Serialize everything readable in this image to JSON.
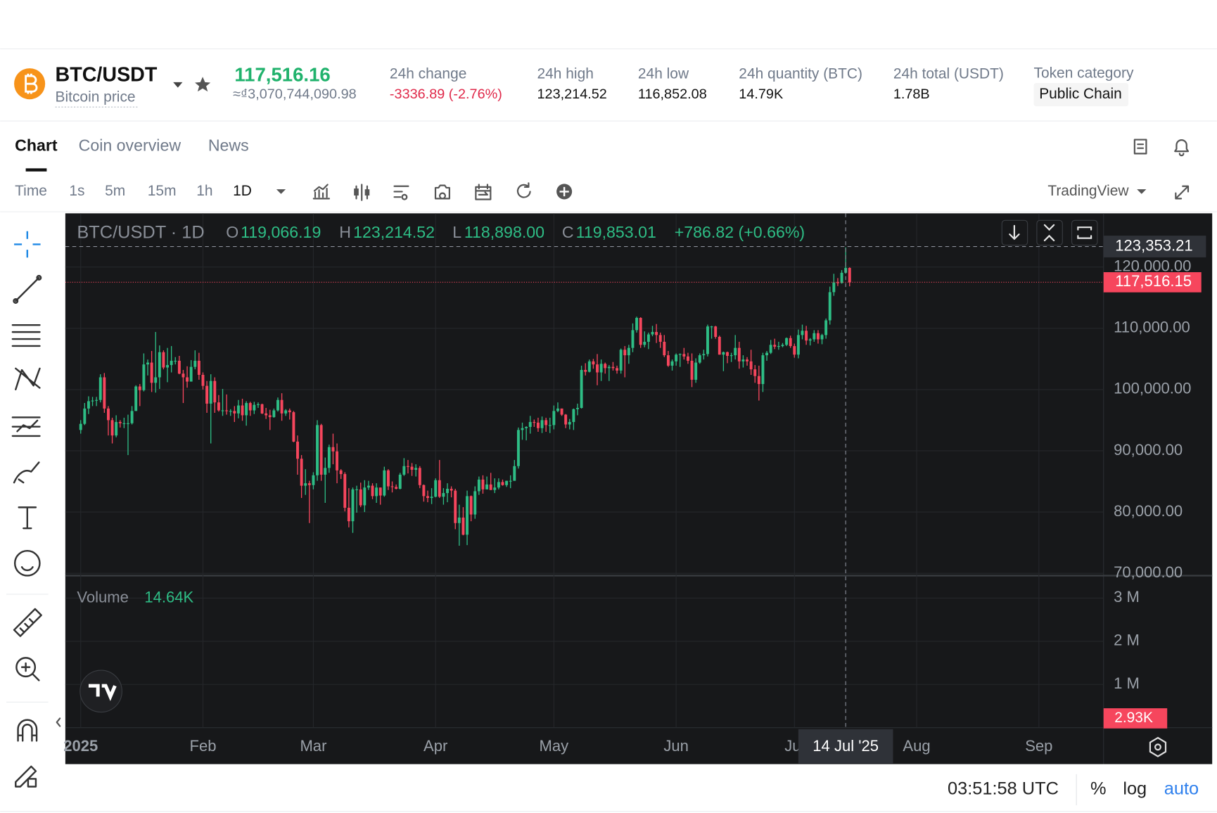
{
  "header": {
    "pair": "BTC/USDT",
    "subtitle": "Bitcoin price",
    "price": "117,516.16",
    "price_alt": "≈₫3,070,744,090.98",
    "stats": [
      {
        "label": "24h change",
        "value": "-3336.89 (-2.76%)"
      },
      {
        "label": "24h high",
        "value": "123,214.52"
      },
      {
        "label": "24h low",
        "value": "116,852.08"
      },
      {
        "label": "24h quantity (BTC)",
        "value": "14.79K"
      },
      {
        "label": "24h total (USDT)",
        "value": "1.78B"
      },
      {
        "label": "Token category",
        "value": "Public Chain"
      }
    ]
  },
  "tabs": [
    "Chart",
    "Coin overview",
    "News"
  ],
  "intervals": [
    "Time",
    "1s",
    "5m",
    "15m",
    "1h",
    "1D"
  ],
  "provider": "TradingView",
  "chart_data": {
    "type": "candlestick",
    "title": "BTC/USDT · 1D",
    "legend": [
      {
        "key": "O",
        "value": "119,066.19"
      },
      {
        "key": "H",
        "value": "123,214.52"
      },
      {
        "key": "L",
        "value": "118,898.00"
      },
      {
        "key": "C",
        "value": "119,853.01"
      }
    ],
    "change": "+786.82 (+0.66%)",
    "up_color": "#2ebd85",
    "down_color": "#f6465d",
    "xlim": [
      -3.9,
      259.4
    ],
    "xticks": [
      {
        "value": 0,
        "label": "2025"
      },
      {
        "value": 31,
        "label": "Feb"
      },
      {
        "value": 59,
        "label": "Mar"
      },
      {
        "value": 90,
        "label": "Apr"
      },
      {
        "value": 120,
        "label": "May"
      },
      {
        "value": 151,
        "label": "Jun"
      },
      {
        "value": 181,
        "label": "Jul"
      },
      {
        "value": 212,
        "label": "Aug"
      },
      {
        "value": 243,
        "label": "Sep"
      }
    ],
    "ylim": [
      69620,
      128770
    ],
    "yticks": [
      {
        "value": 70000,
        "label": "70,000.00"
      },
      {
        "value": 80000,
        "label": "80,000.00"
      },
      {
        "value": 90000,
        "label": "90,000.00"
      },
      {
        "value": 100000,
        "label": "100,000.00"
      },
      {
        "value": 110000,
        "label": "110,000.00"
      },
      {
        "value": 120000,
        "label": "120,000.00"
      }
    ],
    "grid": true,
    "crosshair_x": {
      "value": 194,
      "label": "14 Jul '25"
    },
    "crosshair_price": {
      "value": 123353.21,
      "label": "123,353.21"
    },
    "last_price": {
      "value": 117516.15,
      "label": "117,516.15"
    },
    "volume_label": "Volume",
    "volume_value": "14.64K",
    "volume_last": "2.93K",
    "volume_ylim": [
      0,
      3520000
    ],
    "volume_yticks": [
      {
        "value": 1000000,
        "label": "1 M"
      },
      {
        "value": 2000000,
        "label": "2 M"
      },
      {
        "value": 3000000,
        "label": "3 M"
      }
    ],
    "candles": [
      [
        93400,
        95000,
        92800,
        94400
      ],
      [
        94400,
        97800,
        94200,
        96900
      ],
      [
        96900,
        98900,
        96000,
        98100
      ],
      [
        98100,
        98800,
        97300,
        98200
      ],
      [
        98200,
        98800,
        97300,
        98300
      ],
      [
        98300,
        102500,
        97900,
        102000
      ],
      [
        102000,
        102700,
        96200,
        96900
      ],
      [
        96900,
        97300,
        92500,
        95000
      ],
      [
        95000,
        95400,
        91200,
        92500
      ],
      [
        92500,
        95800,
        92200,
        94700
      ],
      [
        94700,
        95000,
        93800,
        94500
      ],
      [
        94500,
        95400,
        93700,
        94500
      ],
      [
        94500,
        95900,
        89300,
        94500
      ],
      [
        94500,
        97300,
        94300,
        96500
      ],
      [
        96500,
        100700,
        96500,
        100500
      ],
      [
        100500,
        100900,
        97300,
        99900
      ],
      [
        99900,
        105900,
        99700,
        104100
      ],
      [
        104100,
        104900,
        102300,
        104400
      ],
      [
        104400,
        106300,
        99600,
        101100
      ],
      [
        101100,
        109400,
        99500,
        102000
      ],
      [
        102000,
        107200,
        100100,
        106100
      ],
      [
        106100,
        106400,
        103300,
        103600
      ],
      [
        103600,
        106800,
        101200,
        104000
      ],
      [
        104000,
        107100,
        102800,
        104700
      ],
      [
        104700,
        105300,
        104100,
        104700
      ],
      [
        104700,
        105500,
        102500,
        102600
      ],
      [
        102600,
        103200,
        97800,
        102000
      ],
      [
        102000,
        103800,
        100300,
        101300
      ],
      [
        101300,
        104800,
        101300,
        103700
      ],
      [
        103700,
        106400,
        103300,
        104700
      ],
      [
        104700,
        106000,
        101600,
        102400
      ],
      [
        102400,
        102800,
        100000,
        100600
      ],
      [
        100600,
        101400,
        96200,
        97700
      ],
      [
        97700,
        102500,
        91200,
        101400
      ],
      [
        101400,
        102000,
        96200,
        97900
      ],
      [
        97900,
        99100,
        96400,
        96600
      ],
      [
        96600,
        100100,
        95700,
        96600
      ],
      [
        96600,
        99200,
        95900,
        96500
      ],
      [
        96500,
        96800,
        95700,
        96500
      ],
      [
        96500,
        97300,
        94700,
        96100
      ],
      [
        96100,
        98300,
        95300,
        97400
      ],
      [
        97400,
        98500,
        94900,
        95800
      ],
      [
        95800,
        98100,
        94100,
        97800
      ],
      [
        97800,
        98000,
        95700,
        96600
      ],
      [
        96600,
        98000,
        96000,
        97500
      ],
      [
        97500,
        97900,
        97000,
        97600
      ],
      [
        97600,
        97700,
        96000,
        96100
      ],
      [
        96100,
        97000,
        95200,
        95800
      ],
      [
        95800,
        96700,
        93400,
        95500
      ],
      [
        95500,
        96900,
        95400,
        96600
      ],
      [
        96600,
        98700,
        96400,
        98300
      ],
      [
        98300,
        99400,
        94900,
        96100
      ],
      [
        96100,
        96800,
        95700,
        96600
      ],
      [
        96600,
        96900,
        95100,
        96300
      ],
      [
        96300,
        96500,
        91400,
        91500
      ],
      [
        91500,
        92500,
        86100,
        88700
      ],
      [
        88700,
        89300,
        82300,
        84300
      ],
      [
        84300,
        87000,
        82800,
        84700
      ],
      [
        84700,
        85100,
        78200,
        84400
      ],
      [
        84400,
        86500,
        83700,
        86000
      ],
      [
        86000,
        95000,
        85100,
        94200
      ],
      [
        94200,
        94400,
        85100,
        86100
      ],
      [
        86100,
        88900,
        81500,
        87200
      ],
      [
        87200,
        91000,
        86400,
        90600
      ],
      [
        90600,
        92800,
        87800,
        89900
      ],
      [
        89900,
        91200,
        84700,
        86800
      ],
      [
        86800,
        87000,
        85400,
        86200
      ],
      [
        86200,
        86500,
        80100,
        80700
      ],
      [
        80700,
        83900,
        77500,
        78500
      ],
      [
        78500,
        84000,
        76600,
        83700
      ],
      [
        83700,
        84300,
        79900,
        83700
      ],
      [
        83700,
        84800,
        80800,
        81100
      ],
      [
        81100,
        85200,
        80000,
        84000
      ],
      [
        84000,
        85100,
        83600,
        84300
      ],
      [
        84300,
        84700,
        82100,
        82600
      ],
      [
        82600,
        84700,
        81500,
        84000
      ],
      [
        84000,
        84000,
        81200,
        82700
      ],
      [
        82700,
        87400,
        82500,
        86800
      ],
      [
        86800,
        87000,
        83600,
        84200
      ],
      [
        84200,
        85000,
        83200,
        84100
      ],
      [
        84100,
        84500,
        83700,
        83800
      ],
      [
        83800,
        86400,
        83700,
        86100
      ],
      [
        86100,
        88800,
        85900,
        87500
      ],
      [
        87500,
        88500,
        86300,
        87400
      ],
      [
        87400,
        88000,
        85900,
        86900
      ],
      [
        86900,
        87800,
        85800,
        87200
      ],
      [
        87200,
        87500,
        83900,
        84400
      ],
      [
        84400,
        84500,
        81700,
        82600
      ],
      [
        82600,
        83500,
        81600,
        82300
      ],
      [
        82300,
        83900,
        81300,
        82500
      ],
      [
        82500,
        85500,
        82400,
        85200
      ],
      [
        85200,
        88500,
        82300,
        82500
      ],
      [
        82500,
        83900,
        81200,
        83100
      ],
      [
        83100,
        84700,
        81600,
        83800
      ],
      [
        83800,
        84200,
        82400,
        83500
      ],
      [
        83500,
        83800,
        77200,
        78200
      ],
      [
        78200,
        81200,
        74500,
        79100
      ],
      [
        79100,
        80800,
        76200,
        76300
      ],
      [
        76300,
        83500,
        74600,
        82600
      ],
      [
        82600,
        82700,
        78500,
        79600
      ],
      [
        79600,
        84200,
        78900,
        83400
      ],
      [
        83400,
        85800,
        82800,
        85300
      ],
      [
        85300,
        86000,
        83000,
        83700
      ],
      [
        83700,
        85800,
        83700,
        84500
      ],
      [
        84500,
        86400,
        83600,
        83600
      ],
      [
        83600,
        85500,
        83100,
        84000
      ],
      [
        84000,
        85500,
        83700,
        84900
      ],
      [
        84900,
        85300,
        84300,
        84400
      ],
      [
        84400,
        85100,
        84100,
        85100
      ],
      [
        85100,
        86000,
        83900,
        85100
      ],
      [
        85100,
        88500,
        85100,
        87500
      ],
      [
        87500,
        93800,
        87100,
        93400
      ],
      [
        93400,
        94600,
        91800,
        93700
      ],
      [
        93700,
        94000,
        91700,
        93900
      ],
      [
        93900,
        95700,
        92800,
        94700
      ],
      [
        94700,
        95100,
        93900,
        94600
      ],
      [
        94600,
        95400,
        93100,
        93700
      ],
      [
        93700,
        95600,
        92900,
        95000
      ],
      [
        95000,
        95400,
        93100,
        94200
      ],
      [
        94200,
        95400,
        92900,
        94200
      ],
      [
        94200,
        97400,
        93500,
        96500
      ],
      [
        96500,
        97900,
        96300,
        96900
      ],
      [
        96900,
        96900,
        95700,
        95900
      ],
      [
        95900,
        96000,
        93700,
        94300
      ],
      [
        94300,
        95200,
        93500,
        94700
      ],
      [
        94700,
        96900,
        93400,
        96800
      ],
      [
        96800,
        97700,
        95800,
        97000
      ],
      [
        97000,
        103900,
        96900,
        103200
      ],
      [
        103200,
        104300,
        102300,
        102900
      ],
      [
        102900,
        104900,
        102800,
        104600
      ],
      [
        104600,
        105000,
        103400,
        104100
      ],
      [
        104100,
        105800,
        100700,
        102800
      ],
      [
        102800,
        104900,
        101400,
        104200
      ],
      [
        104200,
        104400,
        102600,
        103500
      ],
      [
        103500,
        104000,
        101400,
        103700
      ],
      [
        103700,
        104500,
        103100,
        103500
      ],
      [
        103500,
        103900,
        102600,
        103100
      ],
      [
        103100,
        106700,
        102600,
        106500
      ],
      [
        106500,
        107100,
        102000,
        105600
      ],
      [
        105600,
        107300,
        104200,
        106800
      ],
      [
        106800,
        110800,
        106100,
        109700
      ],
      [
        109700,
        111900,
        109300,
        111700
      ],
      [
        111700,
        111800,
        106800,
        107300
      ],
      [
        107300,
        109500,
        106900,
        107800
      ],
      [
        107800,
        109300,
        106600,
        109000
      ],
      [
        109000,
        110400,
        108700,
        109400
      ],
      [
        109400,
        110700,
        107600,
        108900
      ],
      [
        108900,
        109300,
        106800,
        107800
      ],
      [
        107800,
        108900,
        105300,
        105600
      ],
      [
        105600,
        106300,
        103700,
        103900
      ],
      [
        103900,
        104900,
        103100,
        104600
      ],
      [
        104600,
        105900,
        103900,
        105700
      ],
      [
        105700,
        105900,
        103700,
        105800
      ],
      [
        105800,
        106800,
        104900,
        105400
      ],
      [
        105400,
        106000,
        104200,
        104700
      ],
      [
        104700,
        105900,
        100400,
        101600
      ],
      [
        101600,
        105100,
        101100,
        104400
      ],
      [
        104400,
        105900,
        104200,
        105600
      ],
      [
        105600,
        106500,
        104900,
        105800
      ],
      [
        105800,
        110600,
        105400,
        110300
      ],
      [
        110300,
        110400,
        108300,
        110300
      ],
      [
        110300,
        110400,
        108300,
        108600
      ],
      [
        108600,
        108800,
        105700,
        105700
      ],
      [
        105700,
        106200,
        103000,
        106100
      ],
      [
        106100,
        106200,
        104300,
        105500
      ],
      [
        105500,
        106000,
        104500,
        105600
      ],
      [
        105600,
        108900,
        104900,
        106800
      ],
      [
        106800,
        107800,
        103400,
        104600
      ],
      [
        104600,
        105600,
        103600,
        104900
      ],
      [
        104900,
        105300,
        103900,
        104600
      ],
      [
        104600,
        106500,
        102400,
        103300
      ],
      [
        103300,
        104000,
        101100,
        102200
      ],
      [
        102200,
        103900,
        98200,
        100900
      ],
      [
        100900,
        106000,
        99600,
        105600
      ],
      [
        105600,
        106300,
        104700,
        106000
      ],
      [
        106000,
        108100,
        105800,
        107300
      ],
      [
        107300,
        108300,
        106600,
        107000
      ],
      [
        107000,
        107800,
        106500,
        107100
      ],
      [
        107100,
        107600,
        106900,
        107300
      ],
      [
        107300,
        108500,
        107100,
        108400
      ],
      [
        108400,
        108800,
        106800,
        107100
      ],
      [
        107100,
        107500,
        105200,
        105700
      ],
      [
        105700,
        109800,
        105100,
        108900
      ],
      [
        108900,
        110600,
        108200,
        109600
      ],
      [
        109600,
        110400,
        107300,
        108000
      ],
      [
        108000,
        108400,
        107200,
        108200
      ],
      [
        108200,
        109700,
        107800,
        109200
      ],
      [
        109200,
        109700,
        107500,
        108200
      ],
      [
        108200,
        109100,
        107400,
        108900
      ],
      [
        108900,
        111600,
        108300,
        111300
      ],
      [
        111300,
        116800,
        110600,
        115900
      ],
      [
        115900,
        118900,
        115300,
        117500
      ],
      [
        117500,
        118200,
        116900,
        117400
      ],
      [
        117400,
        119500,
        117300,
        119066
      ],
      [
        119066.19,
        123214.52,
        118898,
        119853.01
      ],
      [
        119853.01,
        119950,
        116852.08,
        117516.16
      ]
    ]
  },
  "footer": {
    "time": "03:51:58 UTC",
    "options": [
      "%",
      "log",
      "auto"
    ]
  }
}
